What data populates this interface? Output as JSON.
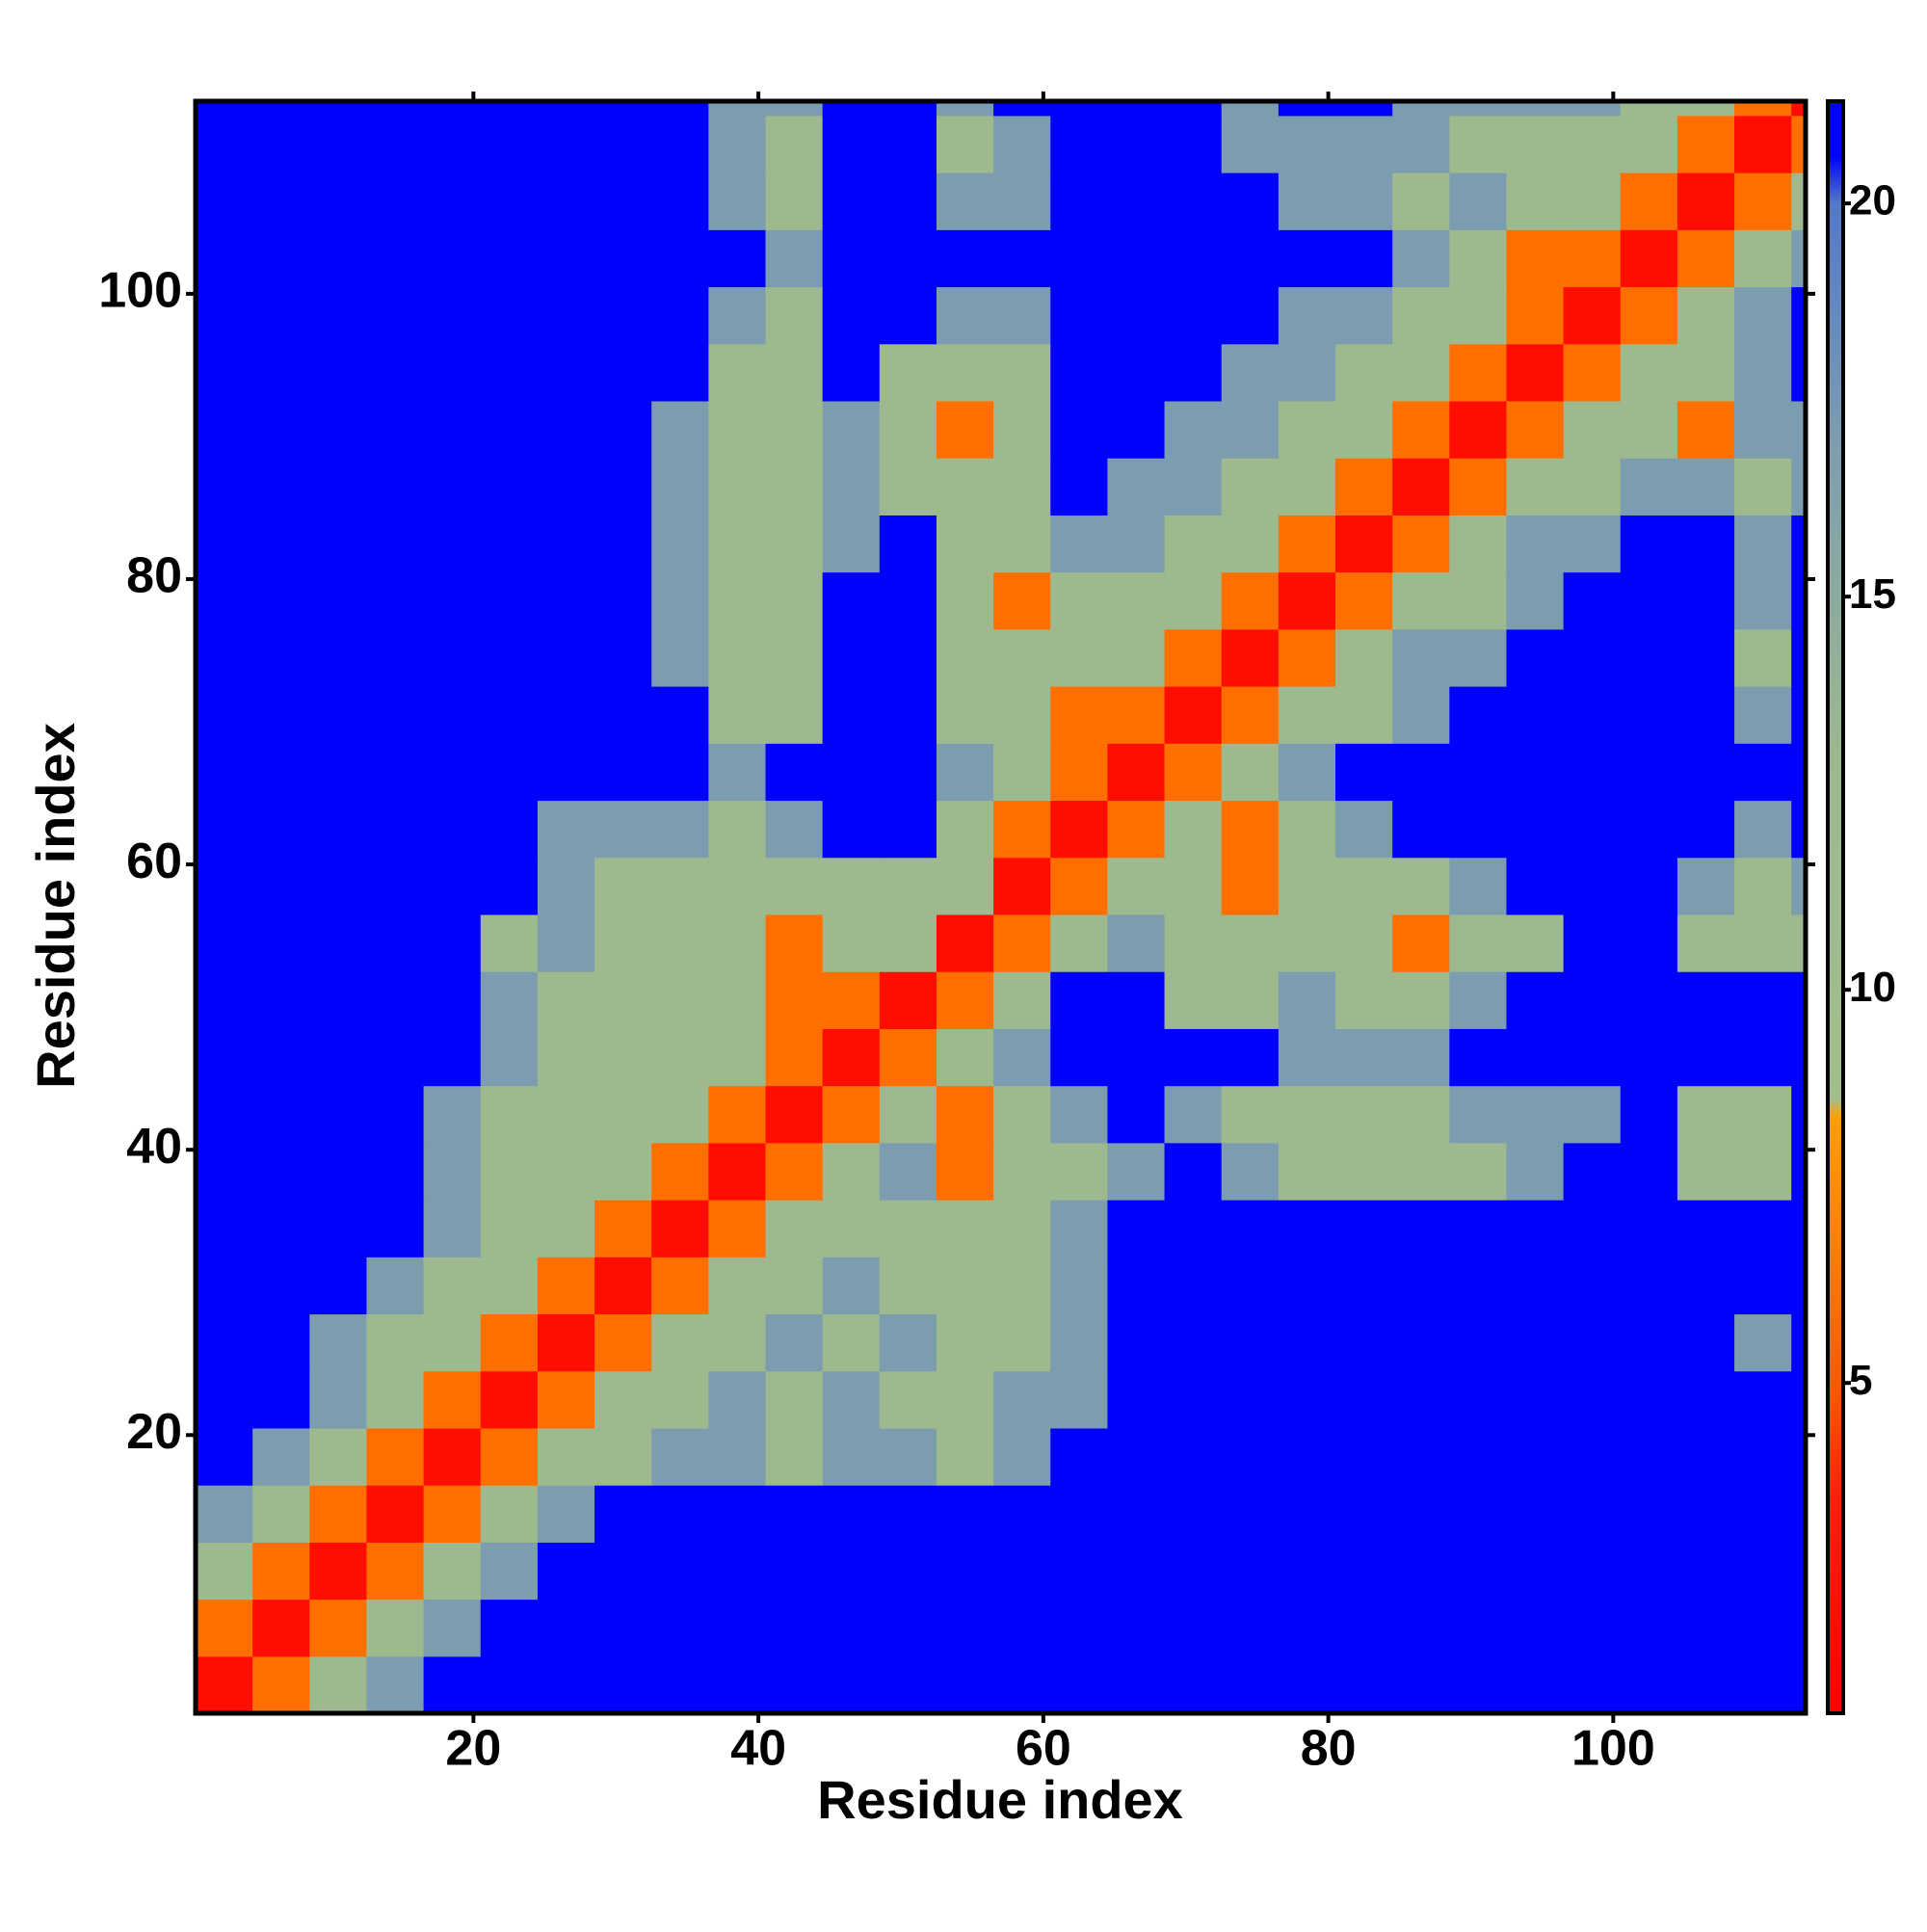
{
  "chart_data": {
    "type": "heatmap",
    "xlabel": "Residue index",
    "ylabel": "Residue index",
    "xlim": [
      0.5,
      113.5
    ],
    "ylim": [
      0.5,
      113.5
    ],
    "xticks": [
      20,
      40,
      60,
      80,
      100
    ],
    "yticks": [
      20,
      40,
      60,
      80,
      100
    ],
    "xbins": [
      0.5,
      4.5,
      8.5,
      12.5,
      16.5,
      20.5,
      24.5,
      28.5,
      32.5,
      36.5,
      40.5,
      44.5,
      48.5,
      52.5,
      56.5,
      60.5,
      64.5,
      68.5,
      72.5,
      76.5,
      80.5,
      84.5,
      88.5,
      92.5,
      96.5,
      100.5,
      104.5,
      108.5,
      112.5,
      113.5
    ],
    "ybins": [
      0.5,
      4.5,
      8.5,
      12.5,
      16.5,
      20.5,
      24.5,
      28.5,
      32.5,
      36.5,
      40.5,
      44.5,
      48.5,
      52.5,
      56.5,
      60.5,
      64.5,
      68.5,
      72.5,
      76.5,
      80.5,
      84.5,
      88.5,
      92.5,
      96.5,
      100.5,
      104.5,
      108.5,
      112.5,
      113.5
    ],
    "values": [
      [
        2,
        6,
        12,
        17,
        21,
        21,
        21,
        21,
        21,
        21,
        21,
        21,
        21,
        21,
        21,
        21,
        21,
        21,
        21,
        21,
        21,
        21,
        21,
        21,
        21,
        21,
        21,
        21,
        21
      ],
      [
        6,
        2,
        6,
        12,
        17,
        21,
        21,
        21,
        21,
        21,
        21,
        21,
        21,
        21,
        21,
        21,
        21,
        21,
        21,
        21,
        21,
        21,
        21,
        21,
        21,
        21,
        21,
        21,
        21
      ],
      [
        12,
        6,
        2,
        6,
        12,
        17,
        21,
        21,
        21,
        21,
        21,
        21,
        21,
        21,
        21,
        21,
        21,
        21,
        21,
        21,
        21,
        21,
        21,
        21,
        21,
        21,
        21,
        21,
        21
      ],
      [
        17,
        12,
        6,
        2,
        6,
        12,
        17,
        21,
        21,
        21,
        21,
        21,
        21,
        21,
        21,
        21,
        21,
        21,
        21,
        21,
        21,
        21,
        21,
        21,
        21,
        21,
        21,
        21,
        21
      ],
      [
        21,
        17,
        12,
        6,
        2,
        6,
        12,
        12,
        17,
        17,
        12,
        17,
        17,
        12,
        17,
        21,
        21,
        21,
        21,
        21,
        21,
        21,
        21,
        21,
        21,
        21,
        21,
        21,
        21
      ],
      [
        21,
        21,
        17,
        12,
        6,
        2,
        6,
        12,
        12,
        17,
        12,
        17,
        12,
        12,
        17,
        17,
        21,
        21,
        21,
        21,
        21,
        21,
        21,
        21,
        21,
        21,
        21,
        21,
        21
      ],
      [
        21,
        21,
        17,
        12,
        12,
        6,
        2,
        6,
        12,
        12,
        17,
        12,
        17,
        12,
        12,
        17,
        21,
        21,
        21,
        21,
        21,
        21,
        21,
        21,
        21,
        21,
        21,
        17,
        21
      ],
      [
        21,
        21,
        21,
        17,
        12,
        12,
        6,
        2,
        6,
        12,
        12,
        17,
        12,
        12,
        12,
        17,
        21,
        21,
        21,
        21,
        21,
        21,
        21,
        21,
        21,
        21,
        21,
        21,
        21
      ],
      [
        21,
        21,
        21,
        21,
        17,
        12,
        12,
        6,
        2,
        6,
        12,
        12,
        12,
        12,
        12,
        17,
        21,
        21,
        21,
        21,
        21,
        21,
        21,
        21,
        21,
        21,
        21,
        21,
        21
      ],
      [
        21,
        21,
        21,
        21,
        17,
        12,
        12,
        12,
        6,
        2,
        6,
        12,
        17,
        6,
        12,
        12,
        17,
        21,
        17,
        12,
        12,
        12,
        12,
        17,
        21,
        21,
        12,
        12,
        21
      ],
      [
        21,
        21,
        21,
        21,
        17,
        12,
        12,
        12,
        12,
        6,
        2,
        6,
        12,
        6,
        12,
        17,
        21,
        17,
        12,
        12,
        12,
        12,
        17,
        17,
        17,
        21,
        12,
        12,
        21
      ],
      [
        21,
        21,
        21,
        21,
        21,
        17,
        12,
        12,
        12,
        12,
        6,
        2,
        6,
        12,
        17,
        21,
        21,
        21,
        21,
        17,
        17,
        17,
        21,
        21,
        21,
        21,
        21,
        21,
        21
      ],
      [
        21,
        21,
        21,
        21,
        21,
        17,
        12,
        12,
        12,
        12,
        6,
        6,
        2,
        6,
        12,
        21,
        21,
        12,
        12,
        17,
        12,
        12,
        17,
        21,
        21,
        21,
        21,
        21,
        21
      ],
      [
        21,
        21,
        21,
        21,
        21,
        12,
        17,
        12,
        12,
        12,
        6,
        12,
        12,
        2,
        6,
        12,
        17,
        12,
        12,
        12,
        12,
        6,
        12,
        12,
        21,
        21,
        12,
        12,
        12
      ],
      [
        21,
        21,
        21,
        21,
        21,
        21,
        17,
        12,
        12,
        12,
        12,
        12,
        12,
        12,
        2,
        6,
        12,
        12,
        6,
        12,
        12,
        12,
        17,
        21,
        21,
        21,
        17,
        12,
        17
      ],
      [
        21,
        21,
        21,
        21,
        21,
        21,
        17,
        17,
        17,
        12,
        17,
        21,
        21,
        12,
        6,
        2,
        6,
        12,
        6,
        12,
        17,
        21,
        21,
        21,
        21,
        21,
        21,
        17,
        21
      ],
      [
        21,
        21,
        21,
        21,
        21,
        21,
        21,
        21,
        21,
        17,
        21,
        21,
        21,
        17,
        12,
        6,
        2,
        6,
        12,
        17,
        21,
        21,
        21,
        21,
        21,
        21,
        21,
        21,
        21
      ],
      [
        21,
        21,
        21,
        21,
        21,
        21,
        21,
        21,
        21,
        12,
        12,
        21,
        21,
        12,
        12,
        6,
        6,
        2,
        6,
        12,
        12,
        17,
        21,
        21,
        21,
        21,
        21,
        17,
        21
      ],
      [
        21,
        21,
        21,
        21,
        21,
        21,
        21,
        21,
        17,
        12,
        12,
        21,
        21,
        12,
        12,
        12,
        12,
        6,
        2,
        6,
        12,
        17,
        17,
        21,
        21,
        21,
        21,
        12,
        21
      ],
      [
        21,
        21,
        21,
        21,
        21,
        21,
        21,
        21,
        17,
        12,
        12,
        21,
        21,
        12,
        6,
        12,
        12,
        12,
        6,
        2,
        6,
        12,
        12,
        17,
        21,
        21,
        21,
        17,
        21
      ],
      [
        21,
        21,
        21,
        21,
        21,
        21,
        21,
        21,
        17,
        12,
        12,
        17,
        21,
        12,
        12,
        17,
        17,
        12,
        12,
        6,
        2,
        6,
        12,
        17,
        17,
        21,
        21,
        17,
        21
      ],
      [
        21,
        21,
        21,
        21,
        21,
        21,
        21,
        21,
        17,
        12,
        12,
        17,
        12,
        12,
        12,
        21,
        17,
        17,
        12,
        12,
        6,
        2,
        6,
        12,
        12,
        17,
        17,
        12,
        17
      ],
      [
        21,
        21,
        21,
        21,
        21,
        21,
        21,
        21,
        17,
        12,
        12,
        17,
        12,
        6,
        12,
        21,
        21,
        17,
        17,
        12,
        12,
        6,
        2,
        6,
        12,
        12,
        6,
        17,
        17
      ],
      [
        21,
        21,
        21,
        21,
        21,
        21,
        21,
        21,
        21,
        12,
        12,
        21,
        12,
        12,
        12,
        21,
        21,
        21,
        17,
        17,
        12,
        12,
        6,
        2,
        6,
        12,
        12,
        17,
        21
      ],
      [
        21,
        21,
        21,
        21,
        21,
        21,
        21,
        21,
        21,
        17,
        12,
        21,
        21,
        17,
        17,
        21,
        21,
        21,
        21,
        17,
        17,
        12,
        12,
        6,
        2,
        6,
        12,
        17,
        21
      ],
      [
        21,
        21,
        21,
        21,
        21,
        21,
        21,
        21,
        21,
        21,
        17,
        21,
        21,
        21,
        21,
        21,
        21,
        21,
        21,
        21,
        21,
        17,
        12,
        6,
        6,
        2,
        6,
        12,
        17
      ],
      [
        21,
        21,
        21,
        21,
        21,
        21,
        21,
        21,
        21,
        17,
        12,
        21,
        21,
        17,
        17,
        21,
        21,
        21,
        21,
        17,
        17,
        12,
        17,
        12,
        12,
        6,
        2,
        6,
        12
      ],
      [
        21,
        21,
        21,
        21,
        21,
        21,
        21,
        21,
        21,
        17,
        12,
        21,
        21,
        12,
        17,
        21,
        21,
        21,
        17,
        17,
        17,
        17,
        12,
        12,
        12,
        12,
        6,
        2,
        6
      ],
      [
        21,
        21,
        21,
        21,
        21,
        21,
        21,
        21,
        21,
        17,
        17,
        21,
        21,
        17,
        21,
        21,
        21,
        21,
        17,
        21,
        21,
        17,
        17,
        17,
        17,
        12,
        12,
        6,
        2
      ]
    ],
    "colorbar": {
      "lim": [
        0.8,
        21.3
      ],
      "ticks": [
        5,
        10,
        15,
        20
      ],
      "colorscale": [
        {
          "value": 0.8,
          "color": "#ff0000"
        },
        {
          "value": 3.5,
          "color": "#ff1e00"
        },
        {
          "value": 5,
          "color": "#ff5a00"
        },
        {
          "value": 8.4,
          "color": "#ffa000"
        },
        {
          "value": 8.6,
          "color": "#a3bd8c"
        },
        {
          "value": 13,
          "color": "#9db88f"
        },
        {
          "value": 17,
          "color": "#7c9db0"
        },
        {
          "value": 20,
          "color": "#5578c8"
        },
        {
          "value": 20.6,
          "color": "#0000ff"
        },
        {
          "value": 21.3,
          "color": "#0000ff"
        }
      ]
    }
  }
}
